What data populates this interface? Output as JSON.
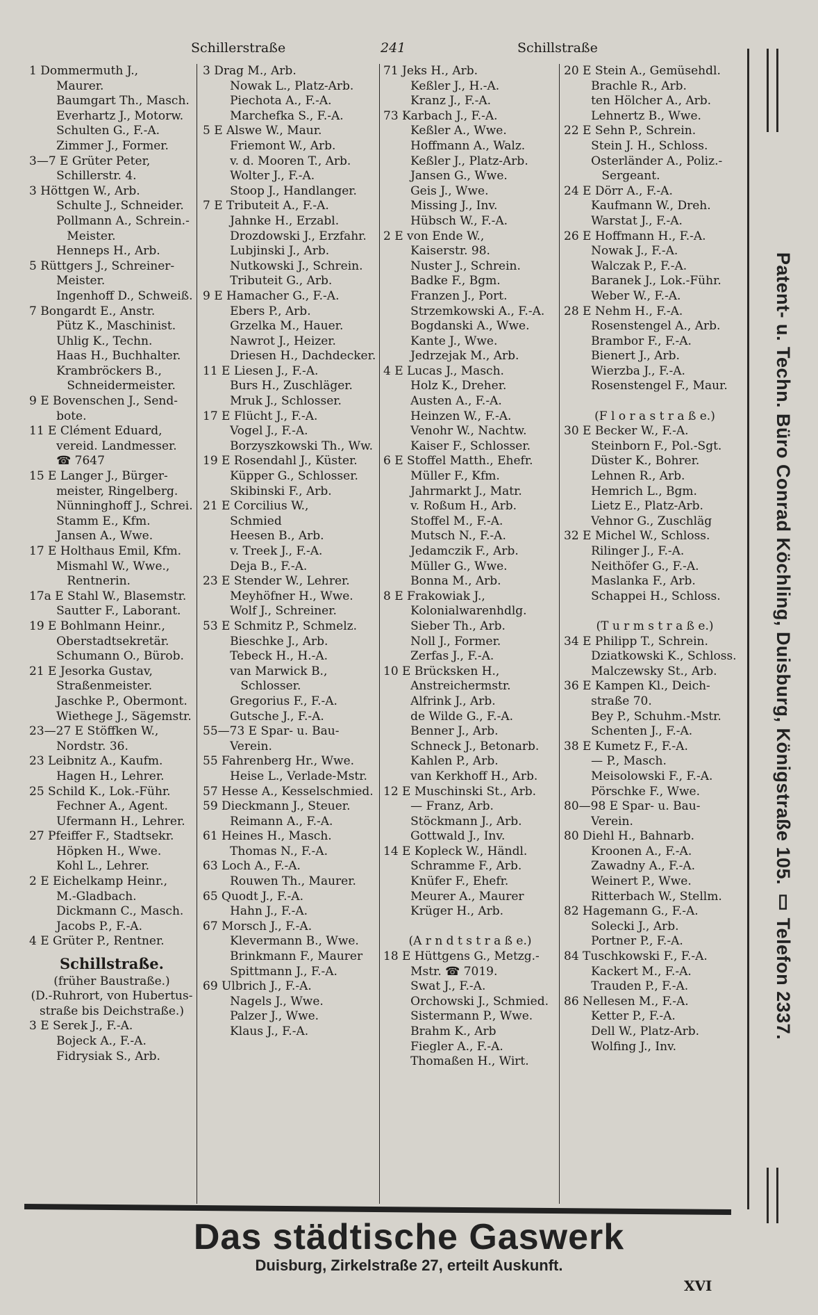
{
  "header": {
    "left": "Schillerstraße",
    "page": "241",
    "right": "Schillstraße"
  },
  "columns": [
    {
      "entries": [
        {
          "n": "1",
          "t": "Dommermuth J.,\nMaurer."
        },
        {
          "n": "",
          "t": "Baumgart Th., Masch."
        },
        {
          "n": "",
          "t": "Everhartz J., Motorw."
        },
        {
          "n": "",
          "t": "Schulten G., F.-A."
        },
        {
          "n": "",
          "t": "Zimmer J., Former."
        },
        {
          "n": "3—7 E",
          "t": "Grüter Peter,\nSchillerstr. 4."
        },
        {
          "n": "3",
          "t": "Höttgen W., Arb."
        },
        {
          "n": "",
          "t": "Schulte J., Schneider."
        },
        {
          "n": "",
          "t": "Pollmann A., Schrein.-\nMeister."
        },
        {
          "n": "",
          "t": "Henneps H., Arb."
        },
        {
          "n": "5",
          "t": "Rüttgers J., Schreiner-\nMeister."
        },
        {
          "n": "",
          "t": "Ingenhoff D., Schweiß."
        },
        {
          "n": "7",
          "t": "Bongardt E., Anstr."
        },
        {
          "n": "",
          "t": "Pütz K., Maschinist."
        },
        {
          "n": "",
          "t": "Uhlig K., Techn."
        },
        {
          "n": "",
          "t": "Haas H., Buchhalter."
        },
        {
          "n": "",
          "t": "Krambröckers B.,\nSchneidermeister."
        },
        {
          "n": "9 E",
          "t": "Bovenschen J., Send-\nbote."
        },
        {
          "n": "11 E",
          "t": "Clément Eduard,\nvereid. Landmesser.\n☎ 7647"
        },
        {
          "n": "15 E",
          "t": "Langer J., Bürger-\nmeister, Ringelberg."
        },
        {
          "n": "",
          "t": "Nünninghoff J., Schrei."
        },
        {
          "n": "",
          "t": "Stamm E., Kfm."
        },
        {
          "n": "",
          "t": "Jansen A., Wwe."
        },
        {
          "n": "17 E",
          "t": "Holthaus Emil, Kfm."
        },
        {
          "n": "",
          "t": "Mismahl W., Wwe.,\nRentnerin."
        },
        {
          "n": "17a E",
          "t": "Stahl W., Blasemstr."
        },
        {
          "n": "",
          "t": "Sautter F., Laborant."
        },
        {
          "n": "19 E",
          "t": "Bohlmann Heinr.,\nOberstadtsekretär."
        },
        {
          "n": "",
          "t": "Schumann O., Bürob."
        },
        {
          "n": "21 E",
          "t": "Jesorka Gustav,\nStraßenmeister."
        },
        {
          "n": "",
          "t": "Jaschke P., Obermont."
        },
        {
          "n": "",
          "t": "Wiethege J., Sägemstr."
        },
        {
          "n": "23—27 E",
          "t": "Stöffken W.,\nNordstr. 36."
        },
        {
          "n": "23",
          "t": "Leibnitz A., Kaufm."
        },
        {
          "n": "",
          "t": "Hagen H., Lehrer."
        },
        {
          "n": "25",
          "t": "Schild K., Lok.-Führ."
        },
        {
          "n": "",
          "t": "Fechner A., Agent."
        },
        {
          "n": "",
          "t": "Ufermann H., Lehrer."
        },
        {
          "n": "27",
          "t": "Pfeiffer F., Stadtsekr."
        },
        {
          "n": "",
          "t": "Höpken H., Wwe."
        },
        {
          "n": "",
          "t": "Kohl L., Lehrer."
        },
        {
          "n": "2 E",
          "t": "Eichelkamp Heinr.,\nM.-Gladbach."
        },
        {
          "n": "",
          "t": "Dickmann C., Masch."
        },
        {
          "n": "",
          "t": "Jacobs P., F.-A."
        },
        {
          "n": "4 E",
          "t": "Grüter P., Rentner."
        },
        {
          "n": "",
          "t": "Schillstraße.",
          "h": true
        },
        {
          "n": "",
          "t": "(früher Baustraße.)",
          "c": true
        },
        {
          "n": "",
          "t": "(D.-Ruhrort, von Hubertus-\nstraße bis Deichstraße.)",
          "c": true
        },
        {
          "n": "3 E",
          "t": "Serek J., F.-A."
        },
        {
          "n": "",
          "t": "Bojeck A., F.-A."
        },
        {
          "n": "",
          "t": "Fidrysiak S., Arb."
        }
      ]
    },
    {
      "entries": [
        {
          "n": "3",
          "t": "Drag M., Arb."
        },
        {
          "n": "",
          "t": "Nowak L., Platz-Arb."
        },
        {
          "n": "",
          "t": "Piechota A., F.-A."
        },
        {
          "n": "",
          "t": "Marchefka S., F.-A."
        },
        {
          "n": "5 E",
          "t": "Alswe W., Maur."
        },
        {
          "n": "",
          "t": "Friemont W., Arb."
        },
        {
          "n": "",
          "t": "v. d. Mooren T., Arb."
        },
        {
          "n": "",
          "t": "Wolter J., F.-A."
        },
        {
          "n": "",
          "t": "Stoop J., Handlanger."
        },
        {
          "n": "7 E",
          "t": "Tributeit A., F.-A."
        },
        {
          "n": "",
          "t": "Jahnke H., Erzabl."
        },
        {
          "n": "",
          "t": "Drozdowski J., Erzfahr."
        },
        {
          "n": "",
          "t": "Lubjinski J., Arb."
        },
        {
          "n": "",
          "t": "Nutkowski J., Schrein."
        },
        {
          "n": "",
          "t": "Tributeit G., Arb."
        },
        {
          "n": "9 E",
          "t": "Hamacher G., F.-A."
        },
        {
          "n": "",
          "t": "Ebers P., Arb."
        },
        {
          "n": "",
          "t": "Grzelka M., Hauer."
        },
        {
          "n": "",
          "t": "Nawrot J., Heizer."
        },
        {
          "n": "",
          "t": "Driesen H., Dachdecker."
        },
        {
          "n": "11 E",
          "t": "Liesen J., F.-A."
        },
        {
          "n": "",
          "t": "Burs H., Zuschläger."
        },
        {
          "n": "",
          "t": "Mruk J., Schlosser."
        },
        {
          "n": "17 E",
          "t": "Flücht J., F.-A."
        },
        {
          "n": "",
          "t": "Vogel J., F.-A."
        },
        {
          "n": "",
          "t": "Borzyszkowski Th., Ww."
        },
        {
          "n": "19 E",
          "t": "Rosendahl J., Küster."
        },
        {
          "n": "",
          "t": "Küpper G., Schlosser."
        },
        {
          "n": "",
          "t": "Skibinski F., Arb."
        },
        {
          "n": "21 E",
          "t": "Corcilius W.,\nSchmied"
        },
        {
          "n": "",
          "t": "Heesen B., Arb."
        },
        {
          "n": "",
          "t": "v. Treek J., F.-A."
        },
        {
          "n": "",
          "t": "Deja B., F.-A."
        },
        {
          "n": "23 E",
          "t": "Stender W., Lehrer."
        },
        {
          "n": "",
          "t": "Meyhöfner H., Wwe."
        },
        {
          "n": "",
          "t": "Wolf J., Schreiner."
        },
        {
          "n": "53 E",
          "t": "Schmitz P., Schmelz."
        },
        {
          "n": "",
          "t": "Bieschke J., Arb."
        },
        {
          "n": "",
          "t": "Tebeck H., H.-A."
        },
        {
          "n": "",
          "t": "van Marwick B.,\nSchlosser."
        },
        {
          "n": "",
          "t": "Gregorius F., F.-A."
        },
        {
          "n": "",
          "t": "Gutsche J., F.-A."
        },
        {
          "n": "55—73 E",
          "t": "Spar- u. Bau-\nVerein."
        },
        {
          "n": "55",
          "t": "Fahrenberg Hr., Wwe."
        },
        {
          "n": "",
          "t": "Heise L., Verlade-Mstr."
        },
        {
          "n": "57",
          "t": "Hesse A., Kesselschmied."
        },
        {
          "n": "59",
          "t": "Dieckmann J., Steuer."
        },
        {
          "n": "",
          "t": "Reimann A., F.-A."
        },
        {
          "n": "61",
          "t": "Heines H., Masch."
        },
        {
          "n": "",
          "t": "Thomas N., F.-A."
        },
        {
          "n": "63",
          "t": "Loch A., F.-A."
        },
        {
          "n": "",
          "t": "Rouwen Th., Maurer."
        },
        {
          "n": "65",
          "t": "Quodt J., F.-A."
        },
        {
          "n": "",
          "t": "Hahn J., F.-A."
        },
        {
          "n": "67",
          "t": "Morsch J., F.-A."
        },
        {
          "n": "",
          "t": "Klevermann B., Wwe."
        },
        {
          "n": "",
          "t": "Brinkmann F., Maurer"
        },
        {
          "n": "",
          "t": "Spittmann J., F.-A."
        },
        {
          "n": "69",
          "t": "Ulbrich J., F.-A."
        },
        {
          "n": "",
          "t": "Nagels J., Wwe."
        },
        {
          "n": "",
          "t": "Palzer J., Wwe."
        },
        {
          "n": "",
          "t": "Klaus J., F.-A."
        }
      ]
    },
    {
      "entries": [
        {
          "n": "71",
          "t": "Jeks H., Arb."
        },
        {
          "n": "",
          "t": "Keßler J., H.-A."
        },
        {
          "n": "",
          "t": "Kranz J., F.-A."
        },
        {
          "n": "73",
          "t": "Karbach J., F.-A."
        },
        {
          "n": "",
          "t": "Keßler A., Wwe."
        },
        {
          "n": "",
          "t": "Hoffmann A., Walz."
        },
        {
          "n": "",
          "t": "Keßler J., Platz-Arb."
        },
        {
          "n": "",
          "t": "Jansen G., Wwe."
        },
        {
          "n": "",
          "t": "Geis J., Wwe."
        },
        {
          "n": "",
          "t": "Missing J., Inv."
        },
        {
          "n": "",
          "t": "Hübsch W., F.-A."
        },
        {
          "n": "2 E",
          "t": "von Ende W.,\nKaiserstr. 98."
        },
        {
          "n": "",
          "t": "Nuster J., Schrein."
        },
        {
          "n": "",
          "t": "Badke F., Bgm."
        },
        {
          "n": "",
          "t": "Franzen J., Port."
        },
        {
          "n": "",
          "t": "Strzemkowski A., F.-A."
        },
        {
          "n": "",
          "t": "Bogdanski A., Wwe."
        },
        {
          "n": "",
          "t": "Kante J., Wwe."
        },
        {
          "n": "",
          "t": "Jedrzejak M., Arb."
        },
        {
          "n": "4 E",
          "t": "Lucas J., Masch."
        },
        {
          "n": "",
          "t": "Holz K., Dreher."
        },
        {
          "n": "",
          "t": "Austen A., F.-A."
        },
        {
          "n": "",
          "t": "Heinzen W., F.-A."
        },
        {
          "n": "",
          "t": "Venohr W., Nachtw."
        },
        {
          "n": "",
          "t": "Kaiser F., Schlosser."
        },
        {
          "n": "6 E",
          "t": "Stoffel Matth., Ehefr."
        },
        {
          "n": "",
          "t": "Müller F., Kfm."
        },
        {
          "n": "",
          "t": "Jahrmarkt J., Matr."
        },
        {
          "n": "",
          "t": "v. Roßum H., Arb."
        },
        {
          "n": "",
          "t": "Stoffel M., F.-A."
        },
        {
          "n": "",
          "t": "Mutsch N., F.-A."
        },
        {
          "n": "",
          "t": "Jedamczik F., Arb."
        },
        {
          "n": "",
          "t": "Müller G., Wwe."
        },
        {
          "n": "",
          "t": "Bonna M., Arb."
        },
        {
          "n": "8 E",
          "t": "Frakowiak J.,\nKolonialwarenhdlg."
        },
        {
          "n": "",
          "t": "Sieber Th., Arb."
        },
        {
          "n": "",
          "t": "Noll J., Former."
        },
        {
          "n": "",
          "t": "Zerfas J., F.-A."
        },
        {
          "n": "10 E",
          "t": "Brücksken H.,\nAnstreichermstr."
        },
        {
          "n": "",
          "t": "Alfrink J., Arb."
        },
        {
          "n": "",
          "t": "de Wilde G., F.-A."
        },
        {
          "n": "",
          "t": "Benner J., Arb."
        },
        {
          "n": "",
          "t": "Schneck J., Betonarb."
        },
        {
          "n": "",
          "t": "Kahlen P., Arb."
        },
        {
          "n": "",
          "t": "van Kerkhoff H., Arb."
        },
        {
          "n": "12 E",
          "t": "Muschinski St., Arb."
        },
        {
          "n": "",
          "t": "— Franz, Arb."
        },
        {
          "n": "",
          "t": "Stöckmann J., Arb."
        },
        {
          "n": "",
          "t": "Gottwald J., Inv."
        },
        {
          "n": "14 E",
          "t": "Kopleck W., Händl."
        },
        {
          "n": "",
          "t": "Schramme F., Arb."
        },
        {
          "n": "",
          "t": "Knüfer F., Ehefr."
        },
        {
          "n": "",
          "t": "Meurer A., Maurer"
        },
        {
          "n": "",
          "t": "Krüger H., Arb."
        },
        {
          "n": "",
          "t": "\n(A r n d t s t r a ß e.)\n",
          "c": true
        },
        {
          "n": "18 E",
          "t": "Hüttgens G., Metzg.-\nMstr. ☎ 7019."
        },
        {
          "n": "",
          "t": "Swat J., F.-A."
        },
        {
          "n": "",
          "t": "Orchowski J., Schmied."
        },
        {
          "n": "",
          "t": "Sistermann P., Wwe."
        },
        {
          "n": "",
          "t": "Brahm K., Arb"
        },
        {
          "n": "",
          "t": "Fiegler A., F.-A."
        },
        {
          "n": "",
          "t": "Thomaßen H., Wirt."
        }
      ]
    },
    {
      "entries": [
        {
          "n": "20 E",
          "t": "Stein A., Gemüsehdl."
        },
        {
          "n": "",
          "t": "Brachle R., Arb."
        },
        {
          "n": "",
          "t": "ten Hölcher A., Arb."
        },
        {
          "n": "",
          "t": "Lehnertz B., Wwe."
        },
        {
          "n": "22 E",
          "t": "Sehn P., Schrein."
        },
        {
          "n": "",
          "t": "Stein J. H., Schloss."
        },
        {
          "n": "",
          "t": "Osterländer A., Poliz.-\nSergeant."
        },
        {
          "n": "24 E",
          "t": "Dörr A., F.-A."
        },
        {
          "n": "",
          "t": "Kaufmann W., Dreh."
        },
        {
          "n": "",
          "t": "Warstat J., F.-A."
        },
        {
          "n": "26 E",
          "t": "Hoffmann H., F.-A."
        },
        {
          "n": "",
          "t": "Nowak J., F.-A."
        },
        {
          "n": "",
          "t": "Walczak P., F.-A."
        },
        {
          "n": "",
          "t": "Baranek J., Lok.-Führ."
        },
        {
          "n": "",
          "t": "Weber W., F.-A."
        },
        {
          "n": "28 E",
          "t": "Nehm H., F.-A."
        },
        {
          "n": "",
          "t": "Rosenstengel A., Arb."
        },
        {
          "n": "",
          "t": "Brambor F., F.-A."
        },
        {
          "n": "",
          "t": "Bienert J., Arb."
        },
        {
          "n": "",
          "t": "Wierzba J., F.-A."
        },
        {
          "n": "",
          "t": "Rosenstengel F., Maur."
        },
        {
          "n": "",
          "t": "\n(F l o r a s t r a ß e.)\n",
          "c": true
        },
        {
          "n": "30 E",
          "t": "Becker W., F.-A."
        },
        {
          "n": "",
          "t": "Steinborn F., Pol.-Sgt."
        },
        {
          "n": "",
          "t": "Düster K., Bohrer."
        },
        {
          "n": "",
          "t": "Lehnen R., Arb."
        },
        {
          "n": "",
          "t": "Hemrich L., Bgm."
        },
        {
          "n": "",
          "t": "Lietz E., Platz-Arb."
        },
        {
          "n": "",
          "t": "Vehnor G., Zuschläg"
        },
        {
          "n": "32 E",
          "t": "Michel W., Schloss."
        },
        {
          "n": "",
          "t": "Rilinger J., F.-A."
        },
        {
          "n": "",
          "t": "Neithöfer G., F.-A."
        },
        {
          "n": "",
          "t": "Maslanka F., Arb."
        },
        {
          "n": "",
          "t": "Schappei H., Schloss."
        },
        {
          "n": "",
          "t": "\n(T u r m s t r a ß e.)\n",
          "c": true
        },
        {
          "n": "34 E",
          "t": "Philipp T., Schrein."
        },
        {
          "n": "",
          "t": "Dziatkowski K., Schloss."
        },
        {
          "n": "",
          "t": "Malczewsky St., Arb."
        },
        {
          "n": "36 E",
          "t": "Kampen Kl., Deich-\nstraße 70."
        },
        {
          "n": "",
          "t": "Bey P., Schuhm.-Mstr."
        },
        {
          "n": "",
          "t": "Schenten J., F.-A."
        },
        {
          "n": "38 E",
          "t": "Kumetz F., F.-A."
        },
        {
          "n": "",
          "t": "— P., Masch."
        },
        {
          "n": "",
          "t": "Meisolowski F., F.-A."
        },
        {
          "n": "",
          "t": "Pörschke F., Wwe."
        },
        {
          "n": "80—98 E",
          "t": "Spar- u. Bau-\nVerein."
        },
        {
          "n": "80",
          "t": "Diehl H., Bahnarb."
        },
        {
          "n": "",
          "t": "Kroonen A., F.-A."
        },
        {
          "n": "",
          "t": "Zawadny A., F.-A."
        },
        {
          "n": "",
          "t": "Weinert P., Wwe."
        },
        {
          "n": "",
          "t": "Ritterbach W., Stellm."
        },
        {
          "n": "82",
          "t": "Hagemann G., F.-A."
        },
        {
          "n": "",
          "t": "Solecki J., Arb."
        },
        {
          "n": "",
          "t": "Portner P., F.-A."
        },
        {
          "n": "84",
          "t": "Tuschkowski F., F.-A."
        },
        {
          "n": "",
          "t": "Kackert M., F.-A."
        },
        {
          "n": "",
          "t": "Trauden P., F.-A."
        },
        {
          "n": "86",
          "t": "Nellesen M., F.-A."
        },
        {
          "n": "",
          "t": "Ketter P., F.-A."
        },
        {
          "n": "",
          "t": "Dell W., Platz-Arb."
        },
        {
          "n": "",
          "t": "Wolfing J., Inv."
        }
      ]
    }
  ],
  "sidebar_ad": "Patent- u. Techn. Büro Conrad Köchling, Duisburg, Königstraße 105.  ▯  Telefon 2337.",
  "bottom_ad": {
    "title": "Das städtische Gaswerk",
    "subtitle": "Duisburg, Zirkelstraße 27, erteilt Auskunft."
  },
  "page_marker": "XVI"
}
